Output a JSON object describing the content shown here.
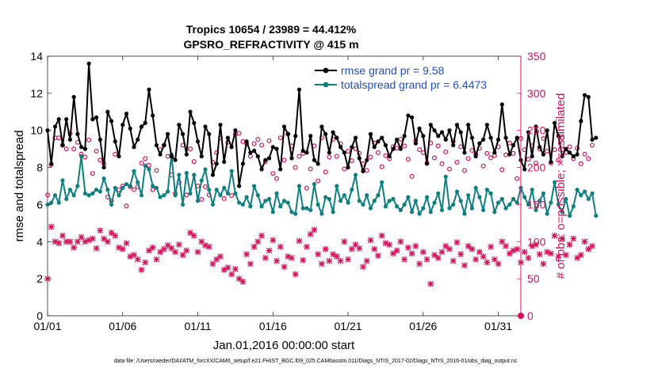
{
  "chart_data": {
    "type": "line",
    "title_line1": "Tropics 10654 / 23989 = 44.412%",
    "title_line2": "GPSRO_REFRACTIVITY @ 415 m",
    "xlabel": "Jan.01,2016 00:00:00 start",
    "ylabel_left": "rmse and totalspread",
    "ylabel_right": "# of obs: o=possible; ×=assimilated",
    "footer": "data file: /Users/raeder/DAI/ATM_forcXX/CAM6_setup/f.e21.FHIST_BGC.f09_025.CAM6assim.011/Diags_NTrS_2017-02/Diags_NTrS_2016-01/obs_diag_output.nc",
    "xlim": [
      1,
      32.5
    ],
    "ylim_left": [
      0,
      14
    ],
    "ylim_right": [
      0,
      350
    ],
    "xticks": [
      1,
      6,
      11,
      16,
      21,
      26,
      31
    ],
    "xtick_labels": [
      "01/01",
      "01/06",
      "01/11",
      "01/16",
      "01/21",
      "01/26",
      "01/31"
    ],
    "yticks_left": [
      0,
      2,
      4,
      6,
      8,
      10,
      12,
      14
    ],
    "yticks_right": [
      0,
      50,
      100,
      150,
      200,
      250,
      300,
      350
    ],
    "legend": [
      {
        "label": "rmse grand pr = 9.58",
        "color": "#000000"
      },
      {
        "label": "totalspread grand pr = 6.4473",
        "color": "#008080"
      }
    ],
    "colors": {
      "rmse": "#000000",
      "spread": "#0e8080",
      "obs": "#d6115b",
      "legend_text": "#1f4fc8"
    },
    "x_start": 1.0,
    "x_step": 0.25,
    "series": [
      {
        "name": "rmse",
        "axis": "left",
        "values": [
          10.0,
          8.2,
          10.2,
          10.6,
          9.2,
          10.6,
          9.5,
          11.8,
          9.8,
          9.1,
          9.0,
          13.6,
          10.6,
          10.7,
          9.5,
          8.0,
          11.0,
          10.5,
          9.4,
          8.6,
          10.3,
          10.9,
          10.1,
          9.1,
          9.5,
          10.2,
          10.4,
          12.2,
          10.8,
          9.2,
          8.7,
          9.2,
          9.8,
          8.6,
          8.4,
          10.3,
          9.8,
          8.7,
          11.0,
          10.4,
          9.4,
          8.6,
          10.2,
          9.8,
          7.6,
          8.2,
          10.3,
          8.3,
          9.6,
          9.1,
          10.0,
          7.0,
          8.2,
          9.4,
          8.8,
          8.9,
          8.6,
          7.9,
          8.4,
          8.5,
          9.1,
          9.0,
          7.9,
          10.2,
          9.8,
          8.5,
          9.7,
          12.2,
          8.9,
          8.8,
          9.7,
          8.4,
          8.2,
          10.2,
          9.8,
          8.8,
          9.9,
          9.6,
          9.1,
          8.8,
          8.0,
          9.1,
          9.6,
          8.5,
          7.8,
          8.4,
          9.8,
          9.1,
          9.4,
          9.6,
          9.2,
          8.6,
          9.0,
          9.5,
          9.0,
          9.7,
          10.8,
          10.7,
          9.3,
          10.1,
          9.7,
          8.2,
          10.3,
          10.0,
          9.7,
          9.9,
          9.5,
          10.0,
          9.2,
          10.3,
          9.9,
          8.8,
          10.3,
          9.6,
          8.6,
          9.3,
          9.5,
          10.3,
          9.6,
          8.8,
          9.5,
          11.4,
          9.6,
          8.7,
          9.2,
          9.6,
          8.4,
          7.9,
          9.9,
          8.6,
          10.2,
          9.1,
          8.7,
          10.0,
          8.3,
          10.4,
          9.7,
          8.6,
          9.0,
          8.8,
          8.6,
          8.7,
          10.5,
          11.9,
          11.8,
          9.5,
          9.6
        ]
      },
      {
        "name": "totalspread",
        "axis": "left",
        "values": [
          6.0,
          6.1,
          6.5,
          6.1,
          7.3,
          6.3,
          6.8,
          6.5,
          7.0,
          8.6,
          6.6,
          6.5,
          6.6,
          6.8,
          6.7,
          7.4,
          6.8,
          6.0,
          6.9,
          6.5,
          6.9,
          7.1,
          7.0,
          7.8,
          7.2,
          6.5,
          8.1,
          7.9,
          7.0,
          6.9,
          6.4,
          6.5,
          6.7,
          8.7,
          6.5,
          7.6,
          6.0,
          7.7,
          6.6,
          7.6,
          6.2,
          7.3,
          7.9,
          6.8,
          6.0,
          6.8,
          6.5,
          6.9,
          6.6,
          7.8,
          6.6,
          6.1,
          6.0,
          6.4,
          5.9,
          7.0,
          6.5,
          5.9,
          6.2,
          6.3,
          5.6,
          6.6,
          5.9,
          6.2,
          6.1,
          5.6,
          5.5,
          7.0,
          5.8,
          5.8,
          5.7,
          7.1,
          6.0,
          5.5,
          6.4,
          6.3,
          5.6,
          7.0,
          6.2,
          6.5,
          6.1,
          6.8,
          7.6,
          6.2,
          6.0,
          6.5,
          5.8,
          6.2,
          6.5,
          7.2,
          5.9,
          6.2,
          6.3,
          5.9,
          5.7,
          6.0,
          6.4,
          5.6,
          6.2,
          5.5,
          5.8,
          6.4,
          5.6,
          6.1,
          6.6,
          5.7,
          7.5,
          5.8,
          6.0,
          6.7,
          6.2,
          5.5,
          6.5,
          5.8,
          6.9,
          6.4,
          5.7,
          6.8,
          6.6,
          5.6,
          6.1,
          6.3,
          5.8,
          6.0,
          6.3,
          6.1,
          6.9,
          6.4,
          6.0,
          6.8,
          5.7,
          6.2,
          6.6,
          5.5,
          6.1,
          7.2,
          6.0,
          5.6,
          6.3,
          5.4,
          5.9,
          6.8,
          6.5,
          6.7,
          6.3,
          6.6,
          5.4
        ]
      },
      {
        "name": "possible",
        "axis": "right",
        "marker": "o",
        "values": [
          163,
          204,
          240,
          240,
          230,
          225,
          246,
          225,
          234,
          218,
          214,
          237,
          192,
          222,
          210,
          205,
          160,
          155,
          218,
          170,
          175,
          148,
          174,
          170,
          174,
          206,
          212,
          203,
          170,
          196,
          224,
          230,
          215,
          190,
          165,
          180,
          230,
          163,
          225,
          208,
          175,
          157,
          174,
          163,
          207,
          220,
          240,
          158,
          234,
          162,
          245,
          246,
          235,
          232,
          215,
          232,
          238,
          230,
          208,
          236,
          192,
          185,
          240,
          210,
          245,
          229,
          200,
          215,
          219,
          172,
          198,
          229,
          182,
          240,
          194,
          214,
          238,
          215,
          232,
          198,
          222,
          209,
          225,
          219,
          205,
          196,
          214,
          233,
          220,
          201,
          216,
          212,
          228,
          226,
          238,
          229,
          211,
          188,
          236,
          224,
          220,
          206,
          233,
          213,
          229,
          205,
          221,
          198,
          235,
          207,
          228,
          196,
          212,
          223,
          218,
          226,
          202,
          219,
          213,
          216,
          228,
          197,
          217,
          233,
          219,
          185,
          239,
          224,
          211,
          229,
          206,
          225,
          239,
          222,
          206,
          224,
          210,
          240,
          220,
          228,
          212,
          226,
          205,
          218,
          212,
          230
        ]
      },
      {
        "name": "assimilated",
        "axis": "right",
        "marker": "x",
        "values": [
          50,
          120,
          100,
          98,
          108,
          100,
          100,
          92,
          100,
          106,
          100,
          102,
          104,
          91,
          115,
          104,
          100,
          112,
          108,
          92,
          90,
          98,
          80,
          82,
          76,
          62,
          72,
          88,
          92,
          76,
          86,
          90,
          95,
          91,
          86,
          96,
          82,
          88,
          112,
          108,
          86,
          100,
          95,
          93,
          70,
          76,
          80,
          62,
          65,
          56,
          63,
          50,
          46,
          83,
          70,
          93,
          100,
          108,
          78,
          88,
          102,
          74,
          93,
          66,
          80,
          78,
          56,
          101,
          75,
          93,
          110,
          116,
          83,
          70,
          90,
          74,
          83,
          80,
          74,
          100,
          76,
          90,
          96,
          91,
          66,
          74,
          102,
          90,
          81,
          108,
          98,
          96,
          84,
          88,
          100,
          76,
          92,
          84,
          94,
          70,
          86,
          76,
          43,
          82,
          78,
          86,
          94,
          90,
          74,
          99,
          83,
          68,
          94,
          90,
          76,
          86,
          80,
          72,
          93,
          76,
          70,
          100,
          94,
          84,
          88,
          90,
          72,
          86,
          78,
          94,
          96,
          83,
          70,
          86,
          84,
          108,
          80,
          104,
          82,
          96,
          104,
          78,
          82,
          100,
          90,
          94
        ]
      }
    ]
  }
}
